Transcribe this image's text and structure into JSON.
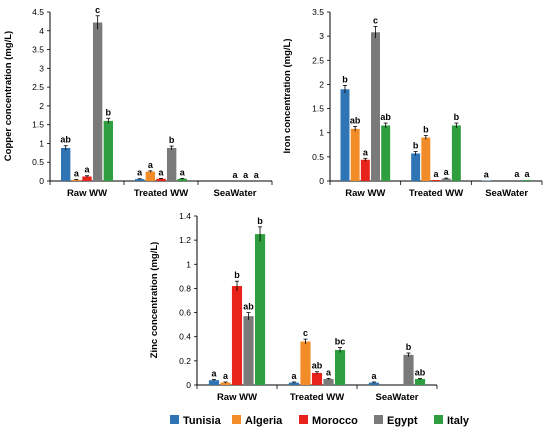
{
  "legend": [
    "Tunisia",
    "Algeria",
    "Morocco",
    "Egypt",
    "Italy"
  ],
  "colors": [
    "#2f75b6",
    "#f28c28",
    "#e8231b",
    "#7a7a7a",
    "#2e9e3f"
  ],
  "chart_data": [
    {
      "type": "bar",
      "ylabel": "Copper concentration (mg/L)",
      "categories": [
        "Raw WW",
        "Treated WW",
        "SeaWater"
      ],
      "ylim": [
        0,
        4.5
      ],
      "ytick_labels": [
        "0",
        "0.5",
        "1",
        "1.5",
        "2",
        "2.5",
        "3",
        "3.5",
        "4",
        "4.5"
      ],
      "series": [
        {
          "name": "Tunisia",
          "values": [
            0.88,
            0.05,
            0.0
          ],
          "errors": [
            0.06,
            0.01,
            0.0
          ],
          "labels": [
            "ab",
            "a",
            ""
          ]
        },
        {
          "name": "Algeria",
          "values": [
            0.03,
            0.25,
            0.0
          ],
          "errors": [
            0.01,
            0.02,
            0.0
          ],
          "labels": [
            "a",
            "a",
            ""
          ]
        },
        {
          "name": "Morocco",
          "values": [
            0.12,
            0.06,
            0.0
          ],
          "errors": [
            0.02,
            0.01,
            0.0
          ],
          "labels": [
            "a",
            "a",
            "a"
          ]
        },
        {
          "name": "Egypt",
          "values": [
            4.22,
            0.88,
            0.0
          ],
          "errors": [
            0.18,
            0.05,
            0.0
          ],
          "labels": [
            "c",
            "b",
            "a"
          ]
        },
        {
          "name": "Italy",
          "values": [
            1.6,
            0.06,
            0.0
          ],
          "errors": [
            0.07,
            0.01,
            0.0
          ],
          "labels": [
            "b",
            "a",
            "a"
          ]
        }
      ]
    },
    {
      "type": "bar",
      "ylabel": "Iron concentration (mg/L)",
      "categories": [
        "Raw WW",
        "Treated WW",
        "SeaWater"
      ],
      "ylim": [
        0,
        3.5
      ],
      "ytick_labels": [
        "0",
        "0.5",
        "1",
        "1.5",
        "2",
        "2.5",
        "3",
        "3.5"
      ],
      "series": [
        {
          "name": "Tunisia",
          "values": [
            1.9,
            0.57,
            0.01
          ],
          "errors": [
            0.08,
            0.04,
            0.0
          ],
          "labels": [
            "b",
            "b",
            "a"
          ]
        },
        {
          "name": "Algeria",
          "values": [
            1.08,
            0.9,
            0.0
          ],
          "errors": [
            0.05,
            0.04,
            0.0
          ],
          "labels": [
            "ab",
            "b",
            ""
          ]
        },
        {
          "name": "Morocco",
          "values": [
            0.44,
            0.02,
            0.0
          ],
          "errors": [
            0.03,
            0.0,
            0.0
          ],
          "labels": [
            "a",
            "a",
            ""
          ]
        },
        {
          "name": "Egypt",
          "values": [
            3.08,
            0.05,
            0.02
          ],
          "errors": [
            0.12,
            0.01,
            0.0
          ],
          "labels": [
            "c",
            "a",
            "a"
          ]
        },
        {
          "name": "Italy",
          "values": [
            1.15,
            1.15,
            0.02
          ],
          "errors": [
            0.05,
            0.05,
            0.0
          ],
          "labels": [
            "ab",
            "b",
            "a"
          ]
        }
      ]
    },
    {
      "type": "bar",
      "ylabel": "Zinc concentration (mg/L)",
      "categories": [
        "Raw WW",
        "Treated WW",
        "SeaWater"
      ],
      "ylim": [
        0,
        1.4
      ],
      "ytick_labels": [
        "0",
        "0.2",
        "0.4",
        "0.6",
        "0.8",
        "1",
        "1.2",
        "1.4"
      ],
      "series": [
        {
          "name": "Tunisia",
          "values": [
            0.04,
            0.02,
            0.02
          ],
          "errors": [
            0.005,
            0.005,
            0.005
          ],
          "labels": [
            "a",
            "a",
            "a"
          ]
        },
        {
          "name": "Algeria",
          "values": [
            0.02,
            0.36,
            0.0
          ],
          "errors": [
            0.005,
            0.02,
            0.0
          ],
          "labels": [
            "a",
            "c",
            ""
          ]
        },
        {
          "name": "Morocco",
          "values": [
            0.82,
            0.1,
            0.0
          ],
          "errors": [
            0.04,
            0.01,
            0.0
          ],
          "labels": [
            "b",
            "ab",
            ""
          ]
        },
        {
          "name": "Egypt",
          "values": [
            0.57,
            0.05,
            0.25
          ],
          "errors": [
            0.03,
            0.005,
            0.015
          ],
          "labels": [
            "ab",
            "a",
            "b"
          ]
        },
        {
          "name": "Italy",
          "values": [
            1.25,
            0.29,
            0.05
          ],
          "errors": [
            0.06,
            0.02,
            0.005
          ],
          "labels": [
            "b",
            "bc",
            "ab"
          ]
        }
      ]
    }
  ]
}
